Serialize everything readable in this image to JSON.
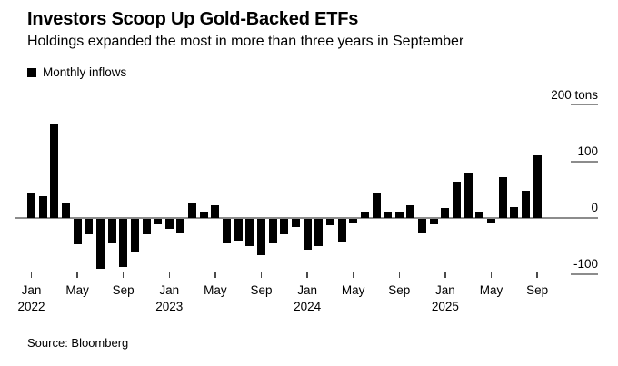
{
  "header": {
    "title": "Investors Scoop Up Gold-Backed ETFs",
    "subtitle": "Holdings expanded the most in more than three years in September"
  },
  "legend": {
    "label": "Monthly inflows"
  },
  "footer": {
    "source": "Source: Bloomberg"
  },
  "colors": {
    "background": "#ffffff",
    "bar": "#000000",
    "axis_line": "#8c8c8c",
    "tick_mark": "#4a4a4a",
    "text": "#000000"
  },
  "chart_data": {
    "type": "bar",
    "title": "Monthly inflows",
    "unit": "tons",
    "ylabel": "",
    "xlabel": "",
    "ylim": [
      -130,
      220
    ],
    "grid": "right-side tick segments only; zero baseline spans full width",
    "legend_position": "top-left",
    "x": [
      "Jan 2022",
      "Feb 2022",
      "Mar 2022",
      "Apr 2022",
      "May 2022",
      "Jun 2022",
      "Jul 2022",
      "Aug 2022",
      "Sep 2022",
      "Oct 2022",
      "Nov 2022",
      "Dec 2022",
      "Jan 2023",
      "Feb 2023",
      "Mar 2023",
      "Apr 2023",
      "May 2023",
      "Jun 2023",
      "Jul 2023",
      "Aug 2023",
      "Sep 2023",
      "Oct 2023",
      "Nov 2023",
      "Dec 2023",
      "Jan 2024",
      "Feb 2024",
      "Mar 2024",
      "Apr 2024",
      "May 2024",
      "Jun 2024",
      "Jul 2024",
      "Aug 2024",
      "Sep 2024",
      "Oct 2024",
      "Nov 2024",
      "Dec 2024",
      "Jan 2025",
      "Feb 2025",
      "Mar 2025",
      "Apr 2025",
      "May 2025",
      "Jun 2025",
      "Jul 2025",
      "Aug 2025",
      "Sep 2025"
    ],
    "values": [
      43,
      38,
      166,
      27,
      -45,
      -28,
      -88,
      -44,
      -86,
      -60,
      -27,
      -9,
      -18,
      -26,
      27,
      11,
      23,
      -44,
      -39,
      -48,
      -64,
      -43,
      -27,
      -14,
      -54,
      -49,
      -12,
      -40,
      -8,
      11,
      44,
      11,
      11,
      23,
      -25,
      -10,
      18,
      64,
      78,
      11,
      -6,
      72,
      20,
      48,
      111
    ],
    "y_ticks": [
      {
        "value": 200,
        "label": "200 tons"
      },
      {
        "value": 100,
        "label": "100"
      },
      {
        "value": 0,
        "label": "0"
      },
      {
        "value": -100,
        "label": "-100"
      }
    ],
    "x_ticks": [
      {
        "index": 0,
        "month": "Jan",
        "year": "2022"
      },
      {
        "index": 4,
        "month": "May"
      },
      {
        "index": 8,
        "month": "Sep"
      },
      {
        "index": 12,
        "month": "Jan",
        "year": "2023"
      },
      {
        "index": 16,
        "month": "May"
      },
      {
        "index": 20,
        "month": "Sep"
      },
      {
        "index": 24,
        "month": "Jan",
        "year": "2024"
      },
      {
        "index": 28,
        "month": "May"
      },
      {
        "index": 32,
        "month": "Sep"
      },
      {
        "index": 36,
        "month": "Jan",
        "year": "2025"
      },
      {
        "index": 40,
        "month": "May"
      },
      {
        "index": 44,
        "month": "Sep"
      }
    ]
  }
}
